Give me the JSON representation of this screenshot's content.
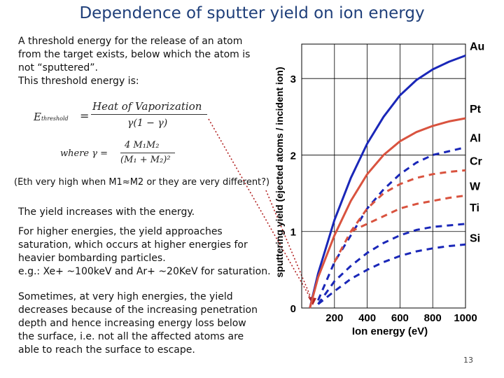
{
  "slide": {
    "title": "Dependence of sputter yield on ion energy",
    "page_number": "13"
  },
  "text": {
    "p1_line1": "A threshold energy for the release of an atom",
    "p1_line2": "from the target exists, below which the atom is",
    "p1_line3": "not “sputtered”.",
    "p1_line4": "This threshold energy is:",
    "eth_note": "(Eth very high when M1≈M2 or they are very different?)",
    "p2": "The yield increases with the energy.",
    "p3_line1": "For higher energies, the yield approaches",
    "p3_line2": "saturation, which occurs at higher energies for",
    "p3_line3": "heavier bombarding particles.",
    "p3_line4": "e.g.: Xe+ ~100keV and Ar+ ~20KeV for saturation.",
    "p4_line1": "Sometimes, at very high energies, the yield",
    "p4_line2": "decreases because of the increasing penetration",
    "p4_line3": "depth and hence increasing energy loss below",
    "p4_line4": "the surface, i.e. not all the affected atoms are",
    "p4_line5": "able to reach the surface to escape."
  },
  "formula": {
    "lhs": "E",
    "lhs_sub": "threshold",
    "equals": "=",
    "numerator": "Heat of Vaporization",
    "denominator": "γ(1 − γ)",
    "where": "where  γ =",
    "gamma_num": "4 M₁M₂",
    "gamma_den": "(M₁ + M₂)²"
  },
  "colors": {
    "title": "#1f3f7a",
    "blue_series": "#1a27b8",
    "red_series": "#d9533f",
    "arrow": "#b22222"
  },
  "chart_data": {
    "type": "line",
    "title": "",
    "xlabel": "Ion energy (eV)",
    "ylabel": "sputtering yield (ejected atoms / incident ion)",
    "xlim": [
      0,
      1000
    ],
    "ylim": [
      0,
      3.45
    ],
    "x_ticks": [
      200,
      400,
      600,
      800,
      1000
    ],
    "y_ticks": [
      0,
      1,
      2,
      3
    ],
    "grid": true,
    "series": [
      {
        "name": "Au",
        "color": "#1a27b8",
        "style": "solid",
        "x": [
          50,
          100,
          200,
          300,
          400,
          500,
          600,
          700,
          800,
          900,
          1000
        ],
        "y": [
          0,
          0.45,
          1.15,
          1.7,
          2.15,
          2.5,
          2.78,
          2.98,
          3.12,
          3.22,
          3.3
        ]
      },
      {
        "name": "Pt",
        "color": "#d9533f",
        "style": "solid",
        "x": [
          50,
          100,
          200,
          300,
          400,
          500,
          600,
          700,
          800,
          900,
          1000
        ],
        "y": [
          0,
          0.4,
          0.95,
          1.4,
          1.75,
          2.0,
          2.18,
          2.3,
          2.38,
          2.44,
          2.48
        ]
      },
      {
        "name": "Al",
        "color": "#1a27b8",
        "style": "dashed",
        "x": [
          100,
          200,
          300,
          400,
          500,
          600,
          700,
          800,
          900,
          1000
        ],
        "y": [
          0.1,
          0.6,
          0.95,
          1.3,
          1.55,
          1.75,
          1.9,
          2.0,
          2.05,
          2.1
        ]
      },
      {
        "name": "Cr",
        "color": "#d9533f",
        "style": "dashed",
        "x": [
          200,
          300,
          400,
          500,
          600,
          700,
          800,
          900,
          1000
        ],
        "y": [
          0.6,
          1.0,
          1.3,
          1.5,
          1.62,
          1.7,
          1.75,
          1.78,
          1.8
        ]
      },
      {
        "name": "W",
        "color": "#d9533f",
        "style": "dashed",
        "x": [
          300,
          400,
          500,
          600,
          700,
          800,
          900,
          1000
        ],
        "y": [
          1.0,
          1.1,
          1.2,
          1.3,
          1.36,
          1.4,
          1.44,
          1.47
        ]
      },
      {
        "name": "Ti",
        "color": "#1a27b8",
        "style": "dashed",
        "x": [
          100,
          200,
          300,
          400,
          500,
          600,
          700,
          800,
          900,
          1000
        ],
        "y": [
          0.05,
          0.35,
          0.55,
          0.72,
          0.85,
          0.95,
          1.02,
          1.06,
          1.08,
          1.1
        ]
      },
      {
        "name": "Si",
        "color": "#1a27b8",
        "style": "dashed",
        "x": [
          100,
          200,
          300,
          400,
          500,
          600,
          700,
          800,
          900,
          1000
        ],
        "y": [
          0.05,
          0.22,
          0.38,
          0.5,
          0.6,
          0.68,
          0.74,
          0.78,
          0.81,
          0.83
        ]
      }
    ],
    "labels": [
      {
        "text": "Au",
        "series": "Au"
      },
      {
        "text": "Pt",
        "series": "Pt"
      },
      {
        "text": "Al",
        "series": "Al"
      },
      {
        "text": "Cr",
        "series": "Cr"
      },
      {
        "text": "W",
        "series": "W"
      },
      {
        "text": "Ti",
        "series": "Ti"
      },
      {
        "text": "Si",
        "series": "Si"
      }
    ]
  }
}
